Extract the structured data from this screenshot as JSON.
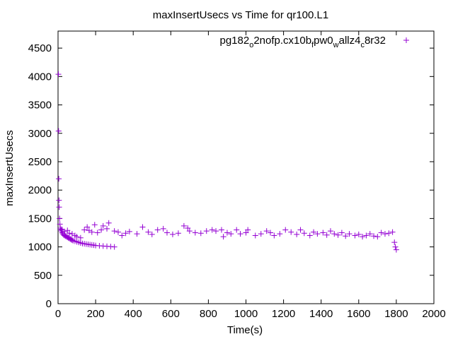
{
  "chart_data": {
    "type": "scatter",
    "title": "maxInsertUsecs vs Time for qr100.L1",
    "xlabel": "Time(s)",
    "ylabel": "maxInsertUsecs",
    "xlim": [
      0,
      2000
    ],
    "ylim": [
      0,
      4800
    ],
    "x_ticks": [
      "0",
      "200",
      "400",
      "600",
      "800",
      "1000",
      "1200",
      "1400",
      "1600",
      "1800",
      "2000"
    ],
    "y_ticks": [
      "0",
      "500",
      "1000",
      "1500",
      "2000",
      "2500",
      "3000",
      "3500",
      "4000",
      "4500"
    ],
    "grid": false,
    "legend_position": "top-right",
    "marker": "+",
    "color": "#9400d3",
    "series": [
      {
        "name": "pg182_o2nofp.cx10b_fpw0_wallz4_c8r32",
        "legend": {
          "base": "pg182",
          "sub1": "o",
          "mid1": "2nofp.cx10b",
          "sub2": "f",
          "mid2": "pw0",
          "sub3": "w",
          "mid3": "allz4",
          "sub4": "c",
          "mid4": "8r32"
        },
        "points": [
          [
            2,
            4040
          ],
          [
            3,
            3040
          ],
          [
            4,
            2200
          ],
          [
            5,
            1820
          ],
          [
            6,
            1700
          ],
          [
            8,
            1500
          ],
          [
            10,
            1400
          ],
          [
            12,
            1330
          ],
          [
            15,
            1300
          ],
          [
            18,
            1280
          ],
          [
            22,
            1250
          ],
          [
            25,
            1230
          ],
          [
            30,
            1210
          ],
          [
            35,
            1200
          ],
          [
            40,
            1190
          ],
          [
            45,
            1180
          ],
          [
            50,
            1170
          ],
          [
            55,
            1160
          ],
          [
            60,
            1150
          ],
          [
            65,
            1140
          ],
          [
            70,
            1130
          ],
          [
            75,
            1120
          ],
          [
            80,
            1110
          ],
          [
            90,
            1100
          ],
          [
            100,
            1090
          ],
          [
            110,
            1080
          ],
          [
            120,
            1070
          ],
          [
            130,
            1060
          ],
          [
            140,
            1055
          ],
          [
            150,
            1050
          ],
          [
            160,
            1045
          ],
          [
            170,
            1040
          ],
          [
            180,
            1035
          ],
          [
            190,
            1030
          ],
          [
            200,
            1025
          ],
          [
            220,
            1020
          ],
          [
            240,
            1015
          ],
          [
            260,
            1010
          ],
          [
            280,
            1005
          ],
          [
            300,
            1000
          ],
          [
            20,
            1310
          ],
          [
            35,
            1270
          ],
          [
            50,
            1290
          ],
          [
            60,
            1240
          ],
          [
            75,
            1230
          ],
          [
            90,
            1200
          ],
          [
            100,
            1180
          ],
          [
            120,
            1160
          ],
          [
            140,
            1300
          ],
          [
            155,
            1350
          ],
          [
            165,
            1290
          ],
          [
            180,
            1260
          ],
          [
            195,
            1390
          ],
          [
            210,
            1250
          ],
          [
            230,
            1300
          ],
          [
            240,
            1370
          ],
          [
            260,
            1320
          ],
          [
            270,
            1420
          ],
          [
            300,
            1280
          ],
          [
            320,
            1260
          ],
          [
            340,
            1200
          ],
          [
            360,
            1240
          ],
          [
            380,
            1270
          ],
          [
            420,
            1230
          ],
          [
            450,
            1350
          ],
          [
            480,
            1260
          ],
          [
            500,
            1220
          ],
          [
            530,
            1300
          ],
          [
            560,
            1320
          ],
          [
            580,
            1250
          ],
          [
            610,
            1220
          ],
          [
            640,
            1240
          ],
          [
            670,
            1370
          ],
          [
            690,
            1330
          ],
          [
            700,
            1280
          ],
          [
            730,
            1250
          ],
          [
            760,
            1240
          ],
          [
            790,
            1280
          ],
          [
            820,
            1300
          ],
          [
            840,
            1280
          ],
          [
            870,
            1300
          ],
          [
            880,
            1180
          ],
          [
            900,
            1250
          ],
          [
            920,
            1230
          ],
          [
            950,
            1300
          ],
          [
            970,
            1230
          ],
          [
            1000,
            1250
          ],
          [
            1010,
            1300
          ],
          [
            1050,
            1200
          ],
          [
            1080,
            1230
          ],
          [
            1110,
            1280
          ],
          [
            1130,
            1250
          ],
          [
            1150,
            1200
          ],
          [
            1180,
            1230
          ],
          [
            1210,
            1300
          ],
          [
            1240,
            1260
          ],
          [
            1270,
            1220
          ],
          [
            1290,
            1300
          ],
          [
            1310,
            1240
          ],
          [
            1340,
            1200
          ],
          [
            1360,
            1260
          ],
          [
            1380,
            1230
          ],
          [
            1410,
            1250
          ],
          [
            1430,
            1210
          ],
          [
            1450,
            1280
          ],
          [
            1470,
            1230
          ],
          [
            1490,
            1210
          ],
          [
            1510,
            1250
          ],
          [
            1530,
            1190
          ],
          [
            1550,
            1230
          ],
          [
            1580,
            1200
          ],
          [
            1600,
            1220
          ],
          [
            1620,
            1180
          ],
          [
            1640,
            1200
          ],
          [
            1660,
            1230
          ],
          [
            1680,
            1190
          ],
          [
            1700,
            1180
          ],
          [
            1720,
            1250
          ],
          [
            1740,
            1230
          ],
          [
            1760,
            1240
          ],
          [
            1780,
            1260
          ],
          [
            1790,
            1080
          ],
          [
            1795,
            1000
          ],
          [
            1800,
            950
          ]
        ]
      }
    ]
  }
}
